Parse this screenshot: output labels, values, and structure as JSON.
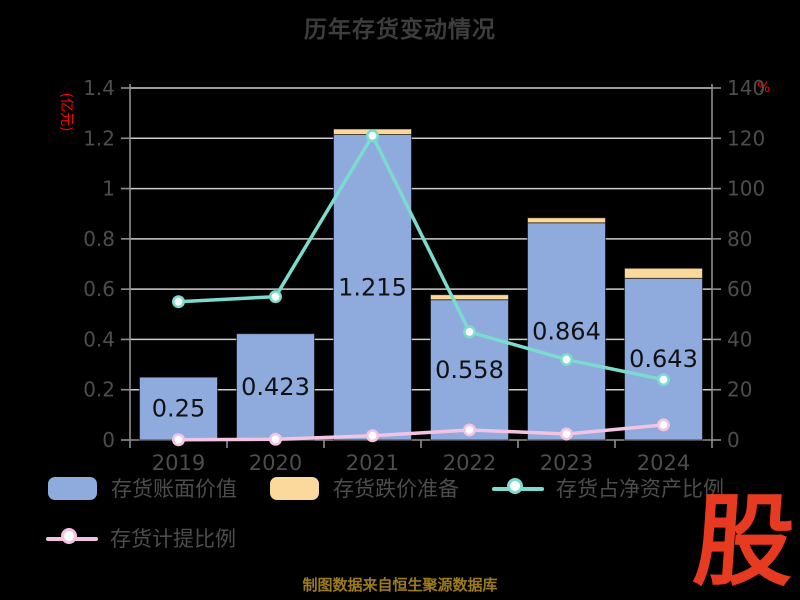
{
  "title": "历年存货变动情况",
  "colors": {
    "background": "#000000",
    "title_text": "#3d3d3d",
    "axis_text": "#4d4d4d",
    "grid_line": "#cdcdcd",
    "axis_line": "#8f8f8f",
    "bar_blue": "#8faadc",
    "cap_orange": "#fbd89b",
    "line_teal": "#7bdcce",
    "line_pink": "#f2c4e2",
    "marker_fill": "#ffffff",
    "bar_value_label": "#111111",
    "unit_red": "#ff0000",
    "footer_gold": "#9c7b1a",
    "logo_red": "#e83a20",
    "legend_text": "#4d4d4d"
  },
  "chart_data": {
    "type": "bar",
    "subtype": "stacked-bar-with-lines-combo",
    "title": "历年存货变动情况",
    "categories": [
      "2019",
      "2020",
      "2021",
      "2022",
      "2023",
      "2024"
    ],
    "series": [
      {
        "name": "存货账面价值",
        "type": "bar",
        "axis": "left",
        "values": [
          0.25,
          0.423,
          1.215,
          0.558,
          0.864,
          0.643
        ],
        "data_labels": [
          "0.25",
          "0.423",
          "1.215",
          "0.558",
          "0.864",
          "0.643"
        ]
      },
      {
        "name": "存货跌价准备",
        "type": "bar-stacked-cap",
        "axis": "left",
        "values": [
          0,
          0,
          0.022,
          0.02,
          0.02,
          0.04
        ]
      },
      {
        "name": "存货占净资产比例",
        "type": "line",
        "axis": "right",
        "values": [
          55,
          57,
          121,
          43,
          32,
          24
        ]
      },
      {
        "name": "存货计提比例",
        "type": "line",
        "axis": "right",
        "values": [
          0.1,
          0.3,
          1.7,
          4,
          2.4,
          6
        ]
      }
    ],
    "left_axis": {
      "unit": "(亿元)",
      "tick_labels": [
        "0",
        "0.2",
        "0.4",
        "0.6",
        "0.8",
        "1",
        "1.2",
        "1.4"
      ],
      "min": 0,
      "max": 1.4
    },
    "right_axis": {
      "unit": "%",
      "tick_labels": [
        "0",
        "20",
        "40",
        "60",
        "80",
        "100",
        "120",
        "140"
      ],
      "min": 0,
      "max": 140
    },
    "grid": true,
    "legend_position": "bottom"
  },
  "legend": {
    "items": [
      {
        "label": "存货账面价值",
        "swatch": "bar-blue"
      },
      {
        "label": "存货跌价准备",
        "swatch": "bar-orange"
      },
      {
        "label": "存货占净资产比例",
        "swatch": "line-teal"
      },
      {
        "label": "存货计提比例",
        "swatch": "line-pink"
      }
    ]
  },
  "footer": {
    "source_text": "制图数据来自恒生聚源数据库"
  },
  "logo": {
    "text": "股"
  }
}
